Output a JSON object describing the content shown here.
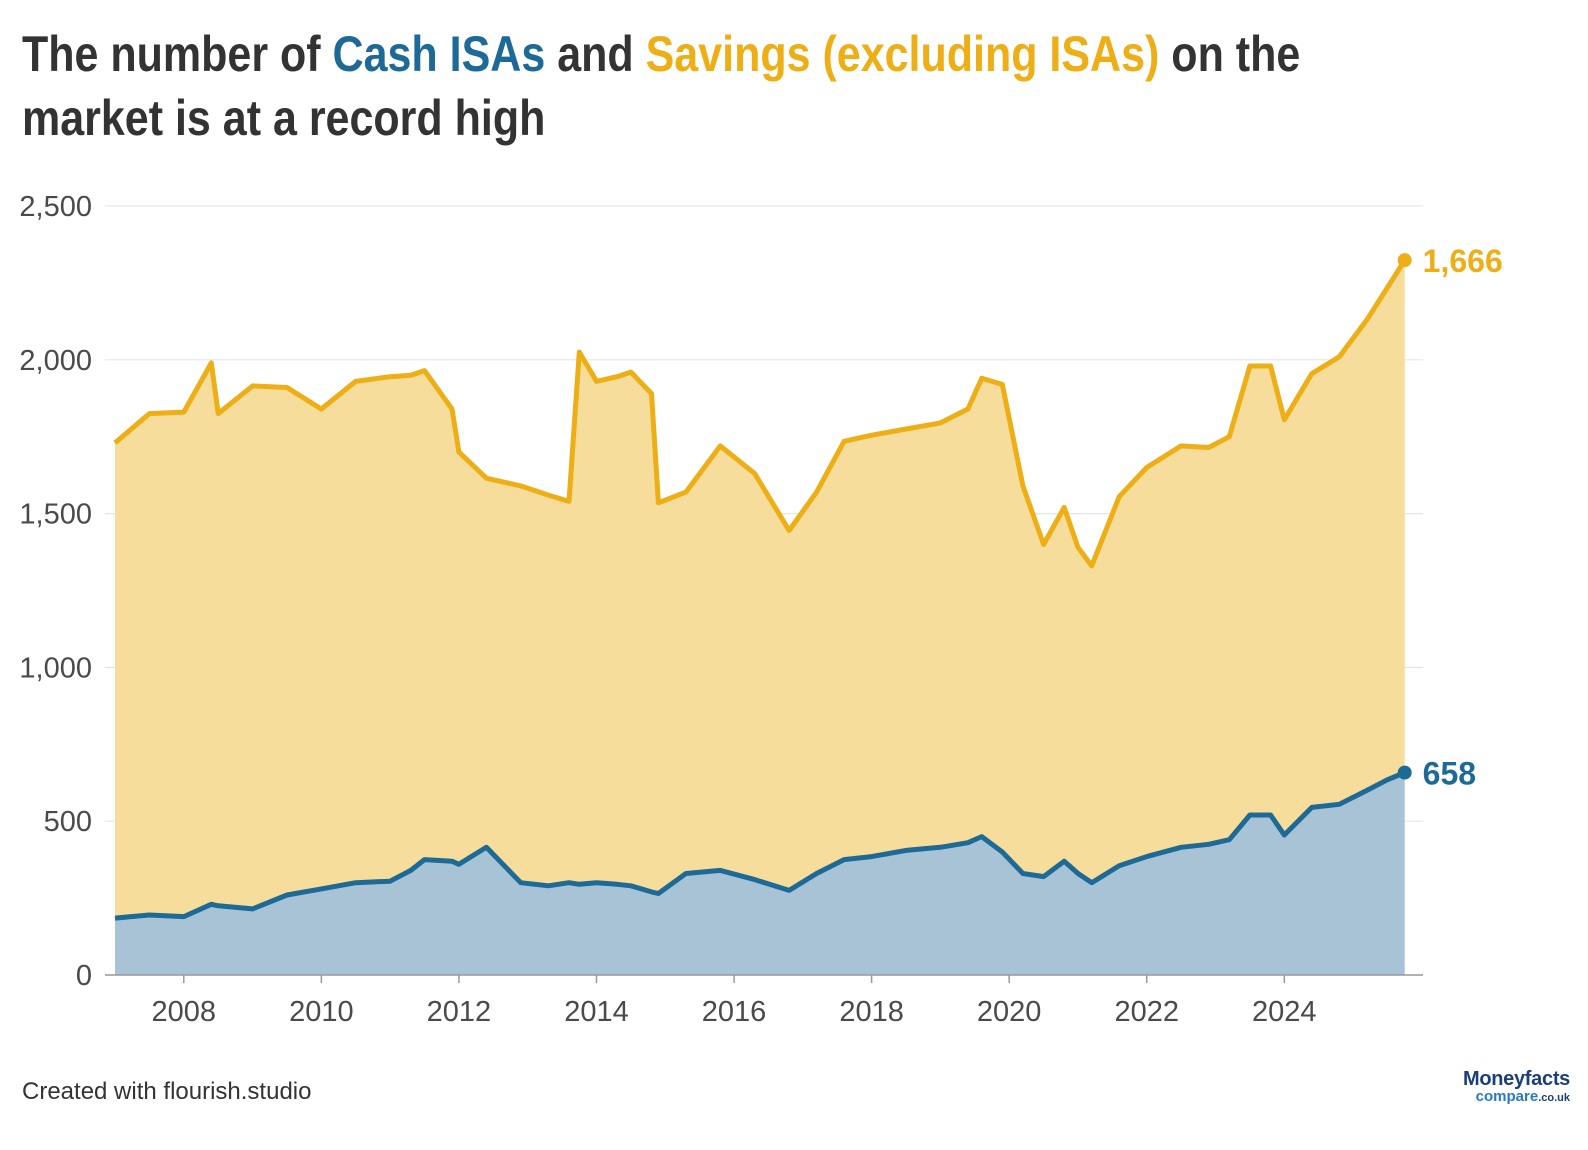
{
  "title": {
    "part1": "The number of ",
    "cash": "Cash ISAs",
    "part2": " and ",
    "savings": "Savings (excluding ISAs)",
    "part3": " on the market is at a record high"
  },
  "footer": "Created with flourish.studio",
  "logo": {
    "brand": "Moneyfacts",
    "sub": "compare",
    "tld": ".co.uk"
  },
  "colors": {
    "cash": "#1e6a96",
    "savings": "#eeae15",
    "cash_fill": "#a8c3d6",
    "savings_fill": "#f6dd9b"
  },
  "chart_data": {
    "type": "area",
    "stacked": true,
    "x_unit": "year",
    "xlim": [
      2007.0,
      2025.9
    ],
    "ylim": [
      0,
      2500
    ],
    "y_ticks": [
      "0",
      "500",
      "1,000",
      "1,500",
      "2,000",
      "2,500"
    ],
    "x_ticks": [
      "2008",
      "2010",
      "2012",
      "2014",
      "2016",
      "2018",
      "2020",
      "2022",
      "2024"
    ],
    "grid": true,
    "x": [
      2007.0,
      2007.5,
      2008.0,
      2008.4,
      2008.5,
      2009.0,
      2009.5,
      2010.0,
      2010.5,
      2011.0,
      2011.3,
      2011.5,
      2011.9,
      2012.0,
      2012.4,
      2012.9,
      2013.3,
      2013.6,
      2013.75,
      2014.0,
      2014.3,
      2014.5,
      2014.8,
      2014.9,
      2015.3,
      2015.8,
      2016.3,
      2016.8,
      2017.2,
      2017.6,
      2018.0,
      2018.5,
      2019.0,
      2019.4,
      2019.6,
      2019.9,
      2020.2,
      2020.5,
      2020.8,
      2021.0,
      2021.2,
      2021.6,
      2022.0,
      2022.5,
      2022.9,
      2023.2,
      2023.5,
      2023.8,
      2024.0,
      2024.4,
      2024.8,
      2025.2,
      2025.5,
      2025.75
    ],
    "series": [
      {
        "name": "Cash ISAs",
        "values": [
          185,
          195,
          190,
          230,
          225,
          215,
          260,
          280,
          300,
          305,
          340,
          375,
          370,
          360,
          415,
          300,
          290,
          300,
          295,
          300,
          295,
          290,
          270,
          265,
          330,
          340,
          310,
          275,
          330,
          375,
          385,
          405,
          415,
          430,
          450,
          400,
          330,
          320,
          370,
          330,
          300,
          355,
          385,
          415,
          425,
          440,
          520,
          520,
          455,
          545,
          555,
          600,
          635,
          658
        ]
      },
      {
        "name": "Savings (excluding ISAs)",
        "values": [
          1545,
          1630,
          1640,
          1760,
          1600,
          1700,
          1650,
          1560,
          1630,
          1640,
          1610,
          1590,
          1470,
          1340,
          1200,
          1290,
          1270,
          1240,
          1730,
          1630,
          1650,
          1670,
          1620,
          1270,
          1240,
          1380,
          1320,
          1170,
          1240,
          1360,
          1370,
          1370,
          1380,
          1410,
          1490,
          1520,
          1260,
          1080,
          1150,
          1060,
          1030,
          1200,
          1265,
          1305,
          1290,
          1310,
          1460,
          1460,
          1350,
          1410,
          1455,
          1530,
          1600,
          1666
        ]
      }
    ],
    "end_labels": [
      "1,666",
      "658"
    ]
  }
}
